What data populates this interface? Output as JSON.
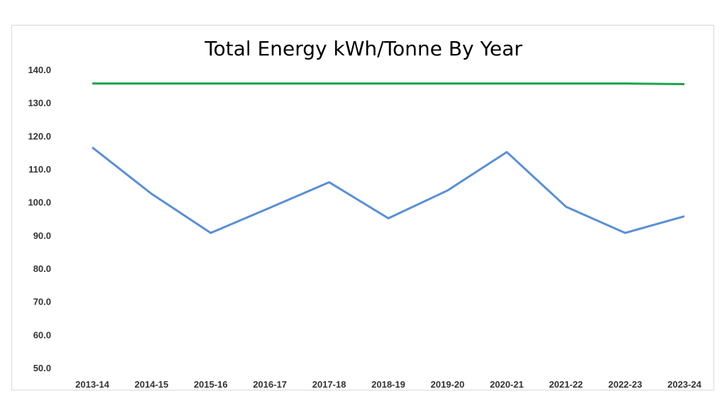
{
  "chart_data": {
    "type": "line",
    "title": "Total Energy kWh/Tonne By Year",
    "xlabel": "",
    "ylabel": "",
    "categories": [
      "2013-14",
      "2014-15",
      "2015-16",
      "2016-17",
      "2017-18",
      "2018-19",
      "2019-20",
      "2020-21",
      "2021-22",
      "2022-23",
      "2023-24"
    ],
    "ylim": [
      50,
      140
    ],
    "yticks": [
      "50.0",
      "60.0",
      "70.0",
      "80.0",
      "90.0",
      "100.0",
      "110.0",
      "120.0",
      "130.0",
      "140.0"
    ],
    "grid": false,
    "series": [
      {
        "values": [
          116.5,
          102.5,
          90.7,
          98.3,
          106.0,
          95.1,
          103.5,
          115.1,
          98.6,
          90.7,
          95.7
        ],
        "color": "#5b8fd3"
      },
      {
        "values": [
          135.8,
          135.8,
          135.8,
          135.8,
          135.8,
          135.8,
          135.8,
          135.8,
          135.8,
          135.8,
          135.6
        ],
        "color": "#1aa44a"
      }
    ]
  }
}
